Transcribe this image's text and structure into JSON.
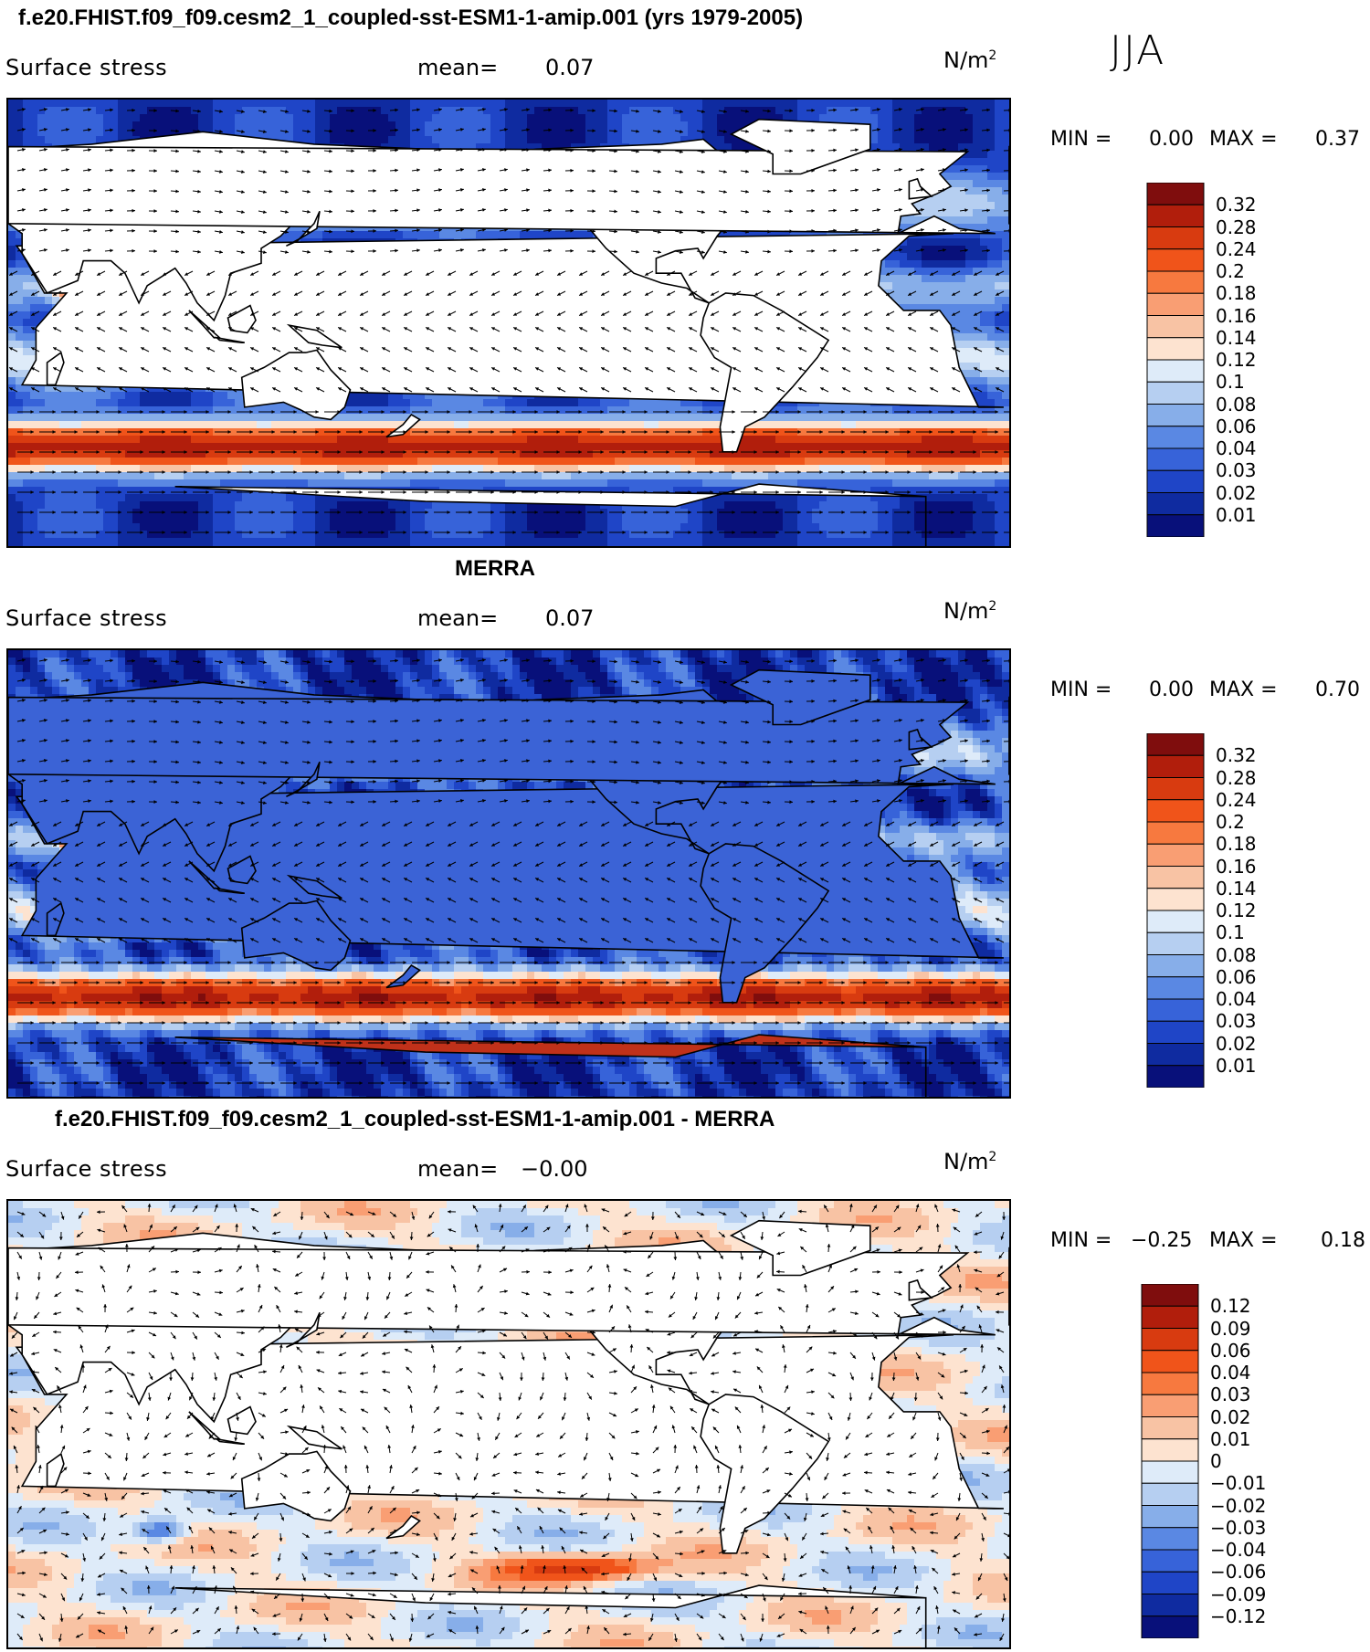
{
  "season": "JJA",
  "panels": [
    {
      "title": "f.e20.FHIST.f09_f09.cesm2_1_coupled-sst-ESM1-1-amip.001 (yrs 1979-2005)",
      "variable": "Surface stress",
      "mean_label": "mean=",
      "mean_value": "0.07",
      "units": "N/m",
      "units_sup": "2",
      "min_label": "MIN =",
      "min_value": "0.00",
      "max_label": "MAX =",
      "max_value": "0.37",
      "colorbar_labels": [
        "0.32",
        "0.28",
        "0.24",
        "0.2",
        "0.18",
        "0.16",
        "0.14",
        "0.12",
        "0.1",
        "0.08",
        "0.06",
        "0.04",
        "0.03",
        "0.02",
        "0.01"
      ],
      "colorbar_colors": [
        "#7f0d0d",
        "#b11e0c",
        "#d83b10",
        "#f0541a",
        "#f7793f",
        "#f99e73",
        "#f8c3a4",
        "#fde3d0",
        "#deebf9",
        "#b6cff1",
        "#87aee9",
        "#5a88e3",
        "#3763d9",
        "#1f45c7",
        "#0f2ba0",
        "#08107a"
      ],
      "scheme": "model"
    },
    {
      "title": "MERRA",
      "variable": "Surface stress",
      "mean_label": "mean=",
      "mean_value": "0.07",
      "units": "N/m",
      "units_sup": "2",
      "min_label": "MIN =",
      "min_value": "0.00",
      "max_label": "MAX =",
      "max_value": "0.70",
      "colorbar_labels": [
        "0.32",
        "0.28",
        "0.24",
        "0.2",
        "0.18",
        "0.16",
        "0.14",
        "0.12",
        "0.1",
        "0.08",
        "0.06",
        "0.04",
        "0.03",
        "0.02",
        "0.01"
      ],
      "colorbar_colors": [
        "#7f0d0d",
        "#b11e0c",
        "#d83b10",
        "#f0541a",
        "#f7793f",
        "#f99e73",
        "#f8c3a4",
        "#fde3d0",
        "#deebf9",
        "#b6cff1",
        "#87aee9",
        "#5a88e3",
        "#3763d9",
        "#1f45c7",
        "#0f2ba0",
        "#08107a"
      ],
      "scheme": "obs"
    },
    {
      "title": "f.e20.FHIST.f09_f09.cesm2_1_coupled-sst-ESM1-1-amip.001 - MERRA",
      "variable": "Surface stress",
      "mean_label": "mean=",
      "mean_value": "−0.00",
      "units": "N/m",
      "units_sup": "2",
      "min_label": "MIN =",
      "min_value": "−0.25",
      "max_label": "MAX =",
      "max_value": "0.18",
      "colorbar_labels": [
        "0.12",
        "0.09",
        "0.06",
        "0.04",
        "0.03",
        "0.02",
        "0.01",
        "0",
        "−0.01",
        "−0.02",
        "−0.03",
        "−0.04",
        "−0.06",
        "−0.09",
        "−0.12"
      ],
      "colorbar_colors": [
        "#7f0d0d",
        "#b11e0c",
        "#d83b10",
        "#f0541a",
        "#f7793f",
        "#f99e73",
        "#f8c3a4",
        "#fde3d0",
        "#deebf9",
        "#b6cff1",
        "#87aee9",
        "#5a88e3",
        "#3763d9",
        "#1f45c7",
        "#0f2ba0",
        "#08107a"
      ],
      "scheme": "diff"
    }
  ]
}
